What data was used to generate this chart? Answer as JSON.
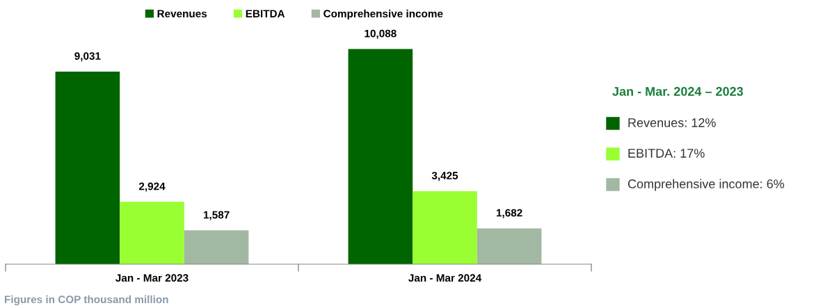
{
  "chart_data": {
    "type": "bar",
    "categories": [
      "Jan - Mar 2023",
      "Jan - Mar 2024"
    ],
    "series": [
      {
        "name": "Revenues",
        "color": "#006400",
        "values": [
          9031,
          10088
        ],
        "value_labels": [
          "9,031",
          "10,088"
        ]
      },
      {
        "name": "EBITDA",
        "color": "#99ff33",
        "values": [
          2924,
          3425
        ],
        "value_labels": [
          "2,924",
          "3,425"
        ]
      },
      {
        "name": "Comprehensive income",
        "color": "#a3b8a3",
        "values": [
          1587,
          1682
        ],
        "value_labels": [
          "1,587",
          "1,682"
        ]
      }
    ],
    "legend": "top",
    "annotations": [
      "Jan - Mar. 2024 – 2023",
      "Revenues: 12%",
      "EBITDA: 17%",
      "Comprehensive income: 6%",
      "Figures in COP thousand million"
    ]
  }
}
